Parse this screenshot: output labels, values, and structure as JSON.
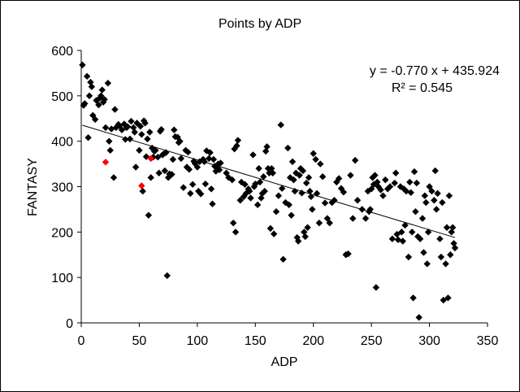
{
  "chart_data": {
    "type": "scatter",
    "title": "Points by ADP",
    "xlabel": "ADP",
    "ylabel": "FANTASY",
    "xlim": [
      0,
      350
    ],
    "ylim": [
      0,
      600
    ],
    "xticks": [
      "0",
      "50",
      "100",
      "150",
      "200",
      "250",
      "300",
      "350"
    ],
    "yticks": [
      "0",
      "100",
      "200",
      "300",
      "400",
      "500",
      "600"
    ],
    "grid": false,
    "legend": "none",
    "colors": {
      "points": "#000000",
      "highlight": "#ff0000",
      "trendline": "#000000"
    },
    "equation": "y = -0.770 x + 435.924",
    "r_squared": "R² = 0.545",
    "trendline": {
      "slope": -0.77,
      "intercept": 435.924,
      "x_range": [
        1,
        322
      ]
    },
    "series": [
      {
        "points": [
          [
            1,
            568
          ],
          [
            2,
            479
          ],
          [
            3,
            483
          ],
          [
            5,
            543
          ],
          [
            6,
            408
          ],
          [
            7,
            500
          ],
          [
            8,
            530
          ],
          [
            9,
            520
          ],
          [
            10,
            457
          ],
          [
            12,
            448
          ],
          [
            13,
            490
          ],
          [
            15,
            480
          ],
          [
            16,
            495
          ],
          [
            17,
            500
          ],
          [
            18,
            513
          ],
          [
            19,
            486
          ],
          [
            20,
            492
          ],
          [
            21,
            430
          ],
          [
            23,
            528
          ],
          [
            24,
            400
          ],
          [
            25,
            380
          ],
          [
            26,
            427
          ],
          [
            28,
            320
          ],
          [
            29,
            470
          ],
          [
            30,
            430
          ],
          [
            32,
            437
          ],
          [
            33,
            434
          ],
          [
            35,
            425
          ],
          [
            37,
            438
          ],
          [
            38,
            404
          ],
          [
            39,
            430
          ],
          [
            40,
            432
          ],
          [
            42,
            405
          ],
          [
            43,
            444
          ],
          [
            45,
            430
          ],
          [
            46,
            420
          ],
          [
            47,
            343
          ],
          [
            48,
            440
          ],
          [
            50,
            380
          ],
          [
            51,
            433
          ],
          [
            52,
            415
          ],
          [
            53,
            290
          ],
          [
            54,
            445
          ],
          [
            55,
            440
          ],
          [
            56,
            366
          ],
          [
            57,
            405
          ],
          [
            58,
            237
          ],
          [
            59,
            420
          ],
          [
            60,
            320
          ],
          [
            61,
            385
          ],
          [
            62,
            365
          ],
          [
            63,
            378
          ],
          [
            64,
            380
          ],
          [
            66,
            365
          ],
          [
            67,
            330
          ],
          [
            68,
            422
          ],
          [
            69,
            426
          ],
          [
            70,
            370
          ],
          [
            71,
            372
          ],
          [
            72,
            335
          ],
          [
            73,
            375
          ],
          [
            74,
            104
          ],
          [
            75,
            320
          ],
          [
            76,
            328
          ],
          [
            78,
            327
          ],
          [
            79,
            360
          ],
          [
            80,
            425
          ],
          [
            81,
            410
          ],
          [
            83,
            409
          ],
          [
            84,
            397
          ],
          [
            85,
            400
          ],
          [
            86,
            362
          ],
          [
            88,
            298
          ],
          [
            90,
            380
          ],
          [
            91,
            343
          ],
          [
            92,
            376
          ],
          [
            93,
            338
          ],
          [
            94,
            285
          ],
          [
            96,
            305
          ],
          [
            97,
            356
          ],
          [
            98,
            351
          ],
          [
            100,
            343
          ],
          [
            101,
            290
          ],
          [
            102,
            355
          ],
          [
            103,
            284
          ],
          [
            105,
            360
          ],
          [
            106,
            355
          ],
          [
            107,
            306
          ],
          [
            108,
            379
          ],
          [
            110,
            362
          ],
          [
            111,
            375
          ],
          [
            112,
            295
          ],
          [
            113,
            262
          ],
          [
            114,
            360
          ],
          [
            115,
            345
          ],
          [
            116,
            334
          ],
          [
            117,
            343
          ],
          [
            118,
            350
          ],
          [
            119,
            337
          ],
          [
            120,
            352
          ],
          [
            125,
            330
          ],
          [
            127,
            320
          ],
          [
            130,
            315
          ],
          [
            131,
            220
          ],
          [
            132,
            383
          ],
          [
            133,
            200
          ],
          [
            134,
            390
          ],
          [
            135,
            402
          ],
          [
            137,
            270
          ],
          [
            138,
            310
          ],
          [
            140,
            278
          ],
          [
            141,
            305
          ],
          [
            142,
            285
          ],
          [
            144,
            295
          ],
          [
            145,
            290
          ],
          [
            146,
            275
          ],
          [
            148,
            370
          ],
          [
            149,
            300
          ],
          [
            150,
            306
          ],
          [
            152,
            260
          ],
          [
            153,
            340
          ],
          [
            154,
            310
          ],
          [
            155,
            275
          ],
          [
            156,
            285
          ],
          [
            157,
            322
          ],
          [
            158,
            290
          ],
          [
            159,
            378
          ],
          [
            160,
            388
          ],
          [
            161,
            340
          ],
          [
            162,
            330
          ],
          [
            163,
            208
          ],
          [
            164,
            340
          ],
          [
            165,
            330
          ],
          [
            166,
            196
          ],
          [
            168,
            245
          ],
          [
            170,
            280
          ],
          [
            172,
            436
          ],
          [
            173,
            296
          ],
          [
            174,
            140
          ],
          [
            176,
            265
          ],
          [
            178,
            385
          ],
          [
            179,
            260
          ],
          [
            180,
            320
          ],
          [
            181,
            237
          ],
          [
            182,
            355
          ],
          [
            183,
            315
          ],
          [
            184,
            290
          ],
          [
            185,
            330
          ],
          [
            186,
            188
          ],
          [
            187,
            180
          ],
          [
            188,
            325
          ],
          [
            189,
            340
          ],
          [
            190,
            286
          ],
          [
            191,
            335
          ],
          [
            192,
            200
          ],
          [
            193,
            190
          ],
          [
            194,
            308
          ],
          [
            195,
            210
          ],
          [
            196,
            320
          ],
          [
            197,
            290
          ],
          [
            198,
            278
          ],
          [
            199,
            250
          ],
          [
            200,
            373
          ],
          [
            202,
            360
          ],
          [
            203,
            285
          ],
          [
            205,
            220
          ],
          [
            206,
            350
          ],
          [
            208,
            322
          ],
          [
            210,
            264
          ],
          [
            212,
            230
          ],
          [
            214,
            220
          ],
          [
            216,
            265
          ],
          [
            218,
            270
          ],
          [
            220,
            310
          ],
          [
            222,
            318
          ],
          [
            224,
            296
          ],
          [
            226,
            288
          ],
          [
            228,
            150
          ],
          [
            230,
            152
          ],
          [
            232,
            325
          ],
          [
            234,
            230
          ],
          [
            236,
            358
          ],
          [
            238,
            270
          ],
          [
            242,
            250
          ],
          [
            245,
            230
          ],
          [
            247,
            290
          ],
          [
            248,
            245
          ],
          [
            249,
            250
          ],
          [
            250,
            295
          ],
          [
            251,
            320
          ],
          [
            252,
            305
          ],
          [
            253,
            325
          ],
          [
            254,
            78
          ],
          [
            255,
            310
          ],
          [
            256,
            300
          ],
          [
            258,
            293
          ],
          [
            260,
            280
          ],
          [
            262,
            315
          ],
          [
            264,
            295
          ],
          [
            266,
            300
          ],
          [
            268,
            185
          ],
          [
            270,
            308
          ],
          [
            271,
            330
          ],
          [
            272,
            195
          ],
          [
            273,
            183
          ],
          [
            275,
            300
          ],
          [
            276,
            200
          ],
          [
            277,
            180
          ],
          [
            278,
            295
          ],
          [
            279,
            215
          ],
          [
            280,
            290
          ],
          [
            282,
            145
          ],
          [
            283,
            310
          ],
          [
            284,
            287
          ],
          [
            285,
            200
          ],
          [
            286,
            55
          ],
          [
            287,
            333
          ],
          [
            288,
            245
          ],
          [
            289,
            308
          ],
          [
            290,
            190
          ],
          [
            291,
            12
          ],
          [
            292,
            185
          ],
          [
            294,
            230
          ],
          [
            295,
            155
          ],
          [
            296,
            280
          ],
          [
            297,
            265
          ],
          [
            298,
            130
          ],
          [
            299,
            200
          ],
          [
            300,
            300
          ],
          [
            302,
            290
          ],
          [
            304,
            270
          ],
          [
            305,
            335
          ],
          [
            306,
            250
          ],
          [
            307,
            285
          ],
          [
            309,
            185
          ],
          [
            310,
            145
          ],
          [
            311,
            265
          ],
          [
            312,
            50
          ],
          [
            314,
            130
          ],
          [
            315,
            210
          ],
          [
            316,
            55
          ],
          [
            317,
            280
          ],
          [
            318,
            150
          ],
          [
            319,
            200
          ],
          [
            320,
            210
          ],
          [
            321,
            175
          ],
          [
            322,
            165
          ]
        ]
      },
      {
        "highlight": true,
        "points": [
          [
            21,
            354
          ],
          [
            52,
            302
          ],
          [
            60,
            362
          ]
        ]
      }
    ]
  }
}
